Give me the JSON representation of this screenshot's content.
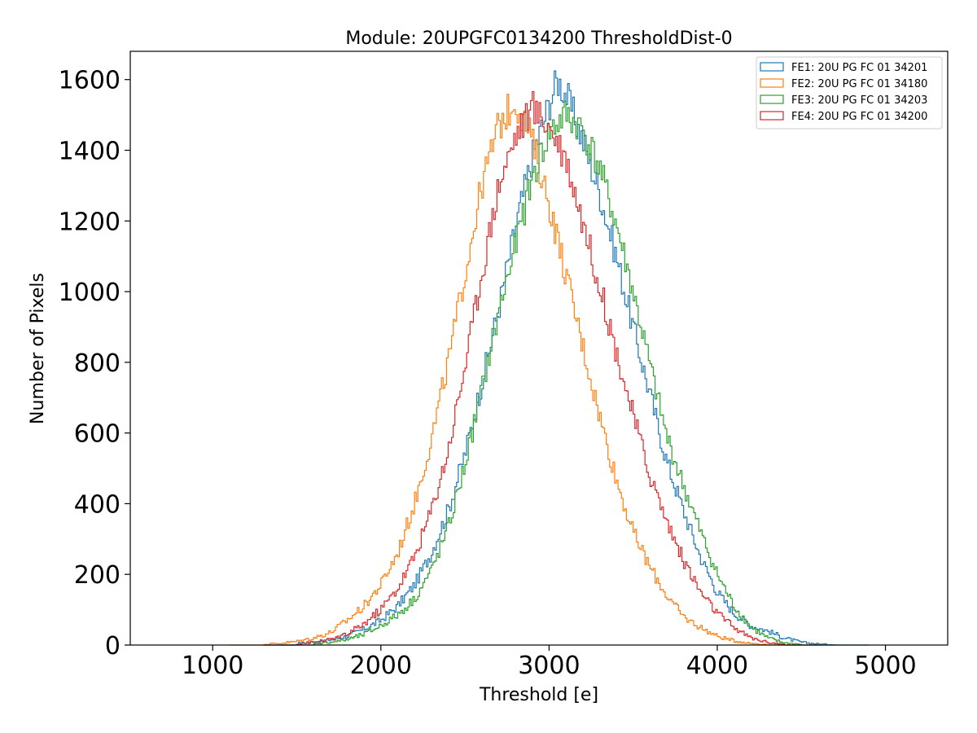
{
  "chart_data": {
    "type": "histogram",
    "title": "Module: 20UPGFC0134200 ThresholdDist-0",
    "xlabel": "Threshold [e]",
    "ylabel": "Number of Pixels",
    "xlim": [
      510,
      5370
    ],
    "ylim": [
      0,
      1680
    ],
    "xticks": [
      1000,
      2000,
      3000,
      4000,
      5000
    ],
    "yticks": [
      0,
      200,
      400,
      600,
      800,
      1000,
      1200,
      1400,
      1600
    ],
    "grid": false,
    "legend_position": "top-right",
    "series": [
      {
        "name": "FE1: 20U PG FC 01 34201",
        "color": "#1f77b4",
        "points": [
          [
            1500,
            5
          ],
          [
            1600,
            8
          ],
          [
            1700,
            15
          ],
          [
            1800,
            25
          ],
          [
            1900,
            45
          ],
          [
            2000,
            70
          ],
          [
            2100,
            110
          ],
          [
            2200,
            170
          ],
          [
            2300,
            260
          ],
          [
            2400,
            380
          ],
          [
            2500,
            540
          ],
          [
            2600,
            740
          ],
          [
            2700,
            950
          ],
          [
            2800,
            1180
          ],
          [
            2900,
            1380
          ],
          [
            3000,
            1530
          ],
          [
            3050,
            1600
          ],
          [
            3100,
            1560
          ],
          [
            3200,
            1430
          ],
          [
            3300,
            1280
          ],
          [
            3400,
            1100
          ],
          [
            3500,
            900
          ],
          [
            3600,
            710
          ],
          [
            3700,
            520
          ],
          [
            3800,
            380
          ],
          [
            3900,
            250
          ],
          [
            4000,
            150
          ],
          [
            4100,
            90
          ],
          [
            4200,
            55
          ],
          [
            4300,
            40
          ],
          [
            4400,
            20
          ],
          [
            4500,
            8
          ],
          [
            4600,
            3
          ],
          [
            4700,
            1
          ]
        ]
      },
      {
        "name": "FE2: 20U PG FC 01 34180",
        "color": "#ff7f0e",
        "points": [
          [
            1300,
            2
          ],
          [
            1400,
            5
          ],
          [
            1500,
            10
          ],
          [
            1600,
            20
          ],
          [
            1700,
            35
          ],
          [
            1800,
            70
          ],
          [
            1900,
            110
          ],
          [
            2000,
            170
          ],
          [
            2100,
            260
          ],
          [
            2200,
            400
          ],
          [
            2300,
            580
          ],
          [
            2400,
            800
          ],
          [
            2500,
            1050
          ],
          [
            2600,
            1300
          ],
          [
            2700,
            1470
          ],
          [
            2800,
            1540
          ],
          [
            2900,
            1430
          ],
          [
            3000,
            1250
          ],
          [
            3100,
            1050
          ],
          [
            3200,
            850
          ],
          [
            3300,
            650
          ],
          [
            3400,
            470
          ],
          [
            3500,
            320
          ],
          [
            3600,
            220
          ],
          [
            3700,
            140
          ],
          [
            3800,
            80
          ],
          [
            3900,
            50
          ],
          [
            4000,
            25
          ],
          [
            4100,
            12
          ],
          [
            4200,
            5
          ],
          [
            4300,
            2
          ]
        ]
      },
      {
        "name": "FE3: 20U PG FC 01 34203",
        "color": "#2ca02c",
        "points": [
          [
            1600,
            4
          ],
          [
            1700,
            8
          ],
          [
            1800,
            15
          ],
          [
            1900,
            30
          ],
          [
            2000,
            55
          ],
          [
            2100,
            85
          ],
          [
            2200,
            130
          ],
          [
            2300,
            210
          ],
          [
            2400,
            330
          ],
          [
            2500,
            510
          ],
          [
            2600,
            720
          ],
          [
            2700,
            940
          ],
          [
            2800,
            1130
          ],
          [
            2900,
            1320
          ],
          [
            3000,
            1450
          ],
          [
            3100,
            1500
          ],
          [
            3200,
            1460
          ],
          [
            3300,
            1350
          ],
          [
            3400,
            1190
          ],
          [
            3500,
            1000
          ],
          [
            3600,
            790
          ],
          [
            3700,
            590
          ],
          [
            3800,
            450
          ],
          [
            3900,
            320
          ],
          [
            4000,
            200
          ],
          [
            4100,
            110
          ],
          [
            4200,
            50
          ],
          [
            4300,
            20
          ],
          [
            4400,
            6
          ],
          [
            4500,
            2
          ]
        ]
      },
      {
        "name": "FE4: 20U PG FC 01 34200",
        "color": "#d62728",
        "points": [
          [
            1500,
            3
          ],
          [
            1600,
            8
          ],
          [
            1700,
            15
          ],
          [
            1800,
            30
          ],
          [
            1900,
            60
          ],
          [
            2000,
            100
          ],
          [
            2100,
            160
          ],
          [
            2200,
            250
          ],
          [
            2300,
            380
          ],
          [
            2400,
            550
          ],
          [
            2500,
            790
          ],
          [
            2600,
            1050
          ],
          [
            2700,
            1300
          ],
          [
            2800,
            1440
          ],
          [
            2900,
            1520
          ],
          [
            3000,
            1470
          ],
          [
            3100,
            1380
          ],
          [
            3200,
            1200
          ],
          [
            3300,
            1020
          ],
          [
            3400,
            830
          ],
          [
            3500,
            650
          ],
          [
            3600,
            480
          ],
          [
            3700,
            350
          ],
          [
            3800,
            240
          ],
          [
            3900,
            150
          ],
          [
            4000,
            90
          ],
          [
            4100,
            50
          ],
          [
            4200,
            20
          ],
          [
            4300,
            8
          ],
          [
            4400,
            2
          ]
        ]
      }
    ]
  }
}
